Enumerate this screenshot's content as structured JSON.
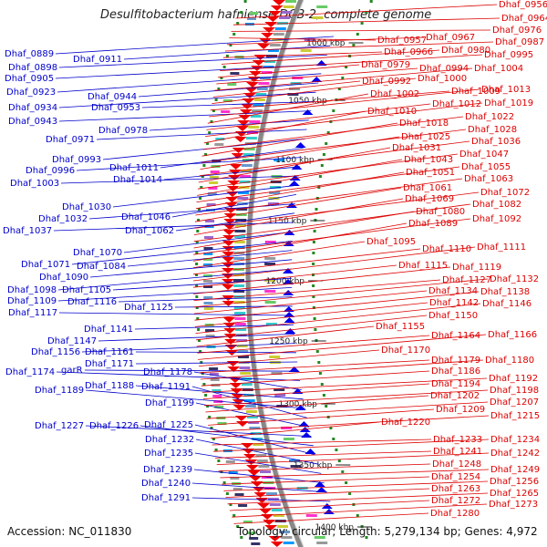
{
  "title": "Desulfitobacterium hafniense DCB-2, complete genome",
  "accession": "Accession: NC_011830",
  "topology": "Topology: circular; Length: 5,279,134 bp; Genes: 4,972",
  "colors": {
    "left_labels": "#0000cc",
    "right_labels": "#dd0000",
    "backbone": "#888888",
    "tick": "#228822"
  },
  "scale_labels": [
    {
      "text": "1000 kbp"
    },
    {
      "text": "1050 kbp"
    },
    {
      "text": "1100 kbp"
    },
    {
      "text": "1150 kbp"
    },
    {
      "text": "1200 kbp"
    },
    {
      "text": "1250 kbp"
    },
    {
      "text": "1300 kbp"
    },
    {
      "text": "1350 kbp"
    },
    {
      "text": "1400 kbp"
    }
  ],
  "left_labels": [
    "Dhaf_0889",
    "Dhaf_0911",
    "Dhaf_0898",
    "Dhaf_0905",
    "Dhaf_0923",
    "Dhaf_0944",
    "Dhaf_0934",
    "Dhaf_0953",
    "Dhaf_0943",
    "Dhaf_0978",
    "Dhaf_0971",
    "Dhaf_0993",
    "Dhaf_1011",
    "Dhaf_0996",
    "Dhaf_1014",
    "Dhaf_1003",
    "Dhaf_1030",
    "Dhaf_1046",
    "Dhaf_1032",
    "Dhaf_1062",
    "Dhaf_1037",
    "Dhaf_1070",
    "Dhaf_1071",
    "Dhaf_1084",
    "Dhaf_1090",
    "Dhaf_1098",
    "Dhaf_1105",
    "Dhaf_1109",
    "Dhaf_1116",
    "Dhaf_1125",
    "Dhaf_1117",
    "Dhaf_1141",
    "Dhaf_1147",
    "Dhaf_1156",
    "Dhaf_1161",
    "Dhaf_1171",
    "garR",
    "Dhaf_1174",
    "Dhaf_1178",
    "Dhaf_1188",
    "Dhaf_1189",
    "Dhaf_1191",
    "Dhaf_1199",
    "Dhaf_1227",
    "Dhaf_1226",
    "Dhaf_1225",
    "Dhaf_1232",
    "Dhaf_1235",
    "Dhaf_1239",
    "Dhaf_1240",
    "Dhaf_1291"
  ],
  "right_labels": [
    "Dhaf_0956",
    "Dhaf_0964",
    "Dhaf_0976",
    "Dhaf_0957",
    "Dhaf_0967",
    "Dhaf_0987",
    "Dhaf_0966",
    "Dhaf_0980",
    "Dhaf_0995",
    "Dhaf_0979",
    "Dhaf_0994",
    "Dhaf_1004",
    "Dhaf_0992",
    "Dhaf_1000",
    "Dhaf_1009",
    "Dhaf_1013",
    "Dhaf_1002",
    "Dhaf_1012",
    "Dhaf_1019",
    "Dhaf_1010",
    "Dhaf_1022",
    "Dhaf_1018",
    "Dhaf_1028",
    "Dhaf_1025",
    "Dhaf_1036",
    "Dhaf_1031",
    "Dhaf_1047",
    "Dhaf_1043",
    "Dhaf_1055",
    "Dhaf_1051",
    "Dhaf_1063",
    "Dhaf_1061",
    "Dhaf_1072",
    "Dhaf_1069",
    "Dhaf_1082",
    "Dhaf_1080",
    "Dhaf_1092",
    "Dhaf_1089",
    "Dhaf_1095",
    "Dhaf_1110",
    "Dhaf_1111",
    "Dhaf_1115",
    "Dhaf_1119",
    "Dhaf_1127",
    "Dhaf_1132",
    "Dhaf_1134",
    "Dhaf_1138",
    "Dhaf_1142",
    "Dhaf_1146",
    "Dhaf_1150",
    "Dhaf_1155",
    "Dhaf_1164",
    "Dhaf_1166",
    "Dhaf_1170",
    "Dhaf_1179",
    "Dhaf_1180",
    "Dhaf_1186",
    "Dhaf_1192",
    "Dhaf_1194",
    "Dhaf_1198",
    "Dhaf_1202",
    "Dhaf_1207",
    "Dhaf_1209",
    "Dhaf_1215",
    "Dhaf_1220",
    "Dhaf_1233",
    "Dhaf_1234",
    "Dhaf_1241",
    "Dhaf_1242",
    "Dhaf_1248",
    "Dhaf_1249",
    "Dhaf_1254",
    "Dhaf_1256",
    "Dhaf_1263",
    "Dhaf_1265",
    "Dhaf_1272",
    "Dhaf_1273",
    "Dhaf_1280"
  ]
}
